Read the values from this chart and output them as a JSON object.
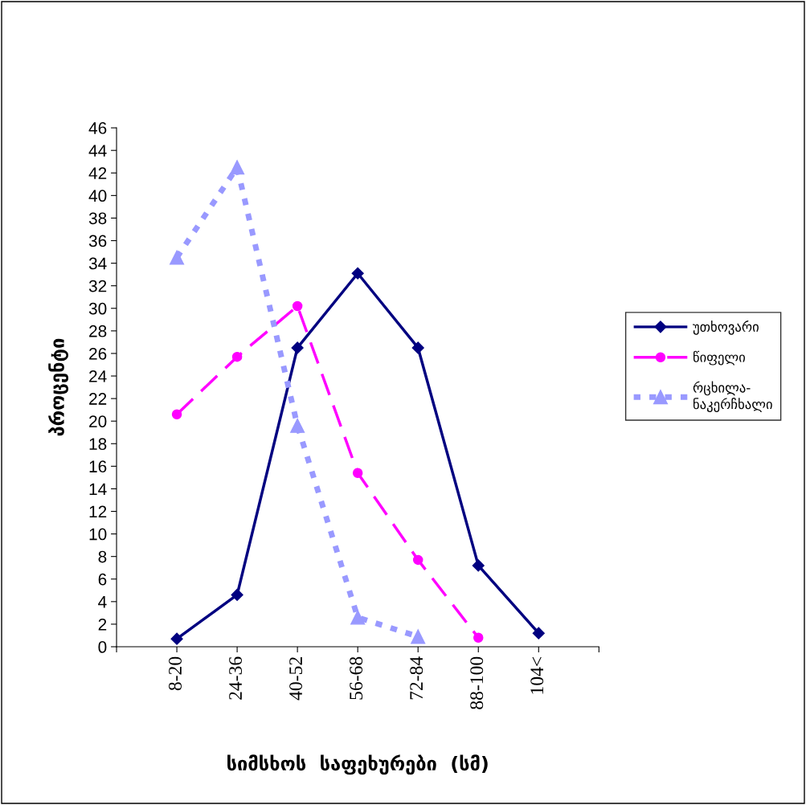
{
  "chart_data": {
    "type": "line",
    "xlabel": "სიმსხოს  საფეხურები  (სმ)",
    "ylabel": "პროცენტი",
    "categories": [
      null,
      "8-20",
      "24-36",
      "40-52",
      "56-68",
      "72-84",
      "88-100",
      "104<",
      null
    ],
    "ylim": [
      0,
      46
    ],
    "yticks": [
      0,
      2,
      4,
      6,
      8,
      10,
      12,
      14,
      16,
      18,
      20,
      22,
      24,
      26,
      28,
      30,
      32,
      34,
      36,
      38,
      40,
      42,
      44,
      46
    ],
    "grid": false,
    "legend": "right",
    "series": [
      {
        "name": "უთხოვარი",
        "color": "#000080",
        "marker": "diamond",
        "line_style": "solid",
        "values": [
          null,
          0.7,
          4.6,
          26.5,
          33.1,
          26.5,
          7.2,
          1.2,
          null
        ]
      },
      {
        "name": "წიფელი",
        "color": "#ff00ff",
        "marker": "circle",
        "line_style": "dashed",
        "values": [
          null,
          20.6,
          25.7,
          30.2,
          15.4,
          7.7,
          0.8,
          null,
          null
        ]
      },
      {
        "name": "რცხილა-ნაკერჩხალი",
        "color": "#9999ff",
        "marker": "triangle",
        "line_style": "dotted",
        "values": [
          null,
          34.5,
          42.5,
          19.6,
          2.6,
          0.9,
          null,
          null,
          null
        ]
      }
    ]
  }
}
